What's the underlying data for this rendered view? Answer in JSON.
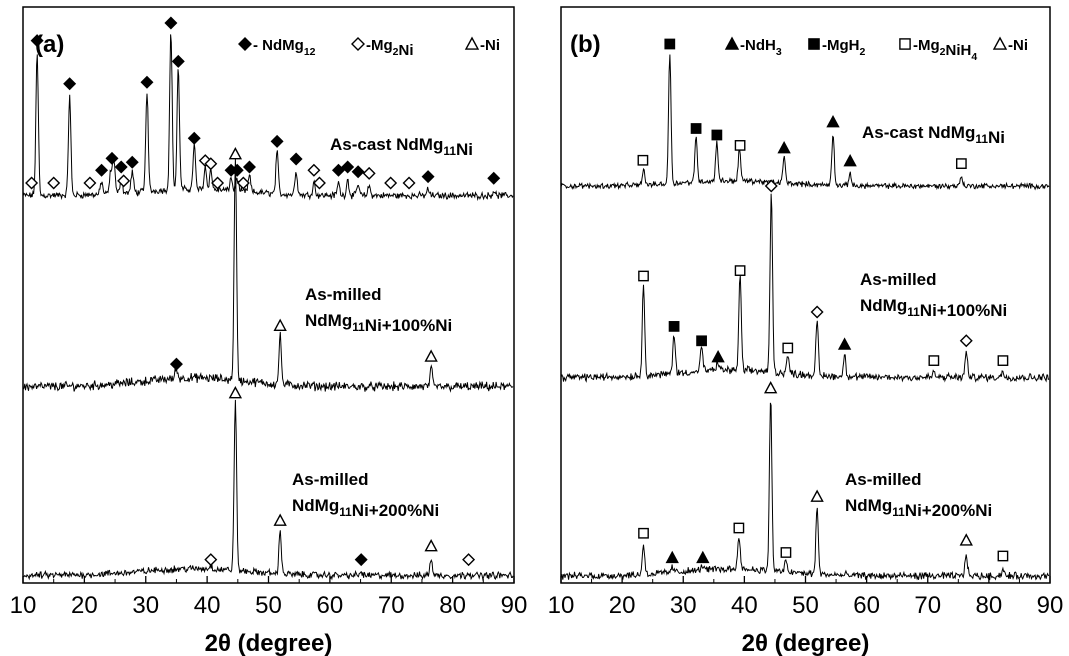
{
  "chart_data": [
    {
      "type": "line",
      "panel_label": "(a)",
      "xlabel": "2θ (degree)",
      "xlim": [
        10,
        90
      ],
      "xticks": [
        10,
        20,
        30,
        40,
        50,
        60,
        70,
        80,
        90
      ],
      "legend": [
        {
          "marker": "filled-diamond",
          "text": "- NdMg12",
          "rich": [
            "- NdMg",
            {
              "sub": "12"
            }
          ]
        },
        {
          "marker": "open-diamond",
          "text": "-Mg2Ni",
          "rich": [
            "-Mg",
            {
              "sub": "2"
            },
            "Ni"
          ]
        },
        {
          "marker": "open-triangle",
          "text": "-Ni",
          "rich": [
            "-Ni"
          ]
        }
      ],
      "series": [
        {
          "label": "As-cast NdMg11Ni",
          "label_lines": [
            [
              "As-cast NdMg",
              {
                "sub": "11"
              },
              "Ni"
            ]
          ],
          "baseline": 0.03,
          "peaks": [
            [
              12.3,
              0.89
            ],
            [
              17.6,
              0.62
            ],
            [
              22.8,
              0.08
            ],
            [
              24.3,
              0.14
            ],
            [
              24.8,
              0.22
            ],
            [
              26.0,
              0.1
            ],
            [
              27.8,
              0.13
            ],
            [
              30.2,
              0.63
            ],
            [
              34.1,
              1.0
            ],
            [
              35.3,
              0.76
            ],
            [
              37.9,
              0.28
            ],
            [
              39.7,
              0.14
            ],
            [
              40.6,
              0.12
            ],
            [
              43.9,
              0.08
            ],
            [
              44.9,
              0.08
            ],
            [
              46.9,
              0.1
            ],
            [
              51.4,
              0.26
            ],
            [
              54.5,
              0.15
            ],
            [
              57.4,
              0.08
            ],
            [
              61.4,
              0.08
            ],
            [
              62.9,
              0.1
            ],
            [
              64.6,
              0.07
            ],
            [
              66.4,
              0.06
            ],
            [
              76.0,
              0.04
            ],
            [
              86.7,
              0.03
            ]
          ]
        },
        {
          "label": "As-milled NdMg11Ni+100%Ni",
          "label_lines": [
            [
              "As-milled"
            ],
            [
              "NdMg",
              {
                "sub": "11"
              },
              "Ni+100%Ni"
            ]
          ],
          "baseline": 0.02,
          "peaks": [
            [
              35.0,
              0.045
            ],
            [
              44.6,
              1.0
            ],
            [
              51.9,
              0.22
            ],
            [
              76.5,
              0.08
            ]
          ]
        },
        {
          "label": "As-milled NdMg11Ni+200%Ni",
          "label_lines": [
            [
              "As-milled"
            ],
            [
              "NdMg",
              {
                "sub": "11"
              },
              "Ni+200%Ni"
            ]
          ],
          "baseline": 0.03,
          "peaks": [
            [
              40.6,
              0.02
            ],
            [
              44.6,
              1.0
            ],
            [
              51.9,
              0.25
            ],
            [
              65.1,
              0.02
            ],
            [
              76.5,
              0.1
            ],
            [
              82.6,
              0.02
            ]
          ]
        }
      ],
      "markers": [
        {
          "series": 0,
          "symbol": "filled-diamond",
          "x": [
            12.3,
            17.6,
            22.8,
            24.5,
            26.0,
            27.8,
            30.2,
            34.1,
            35.3,
            37.9,
            43.9,
            44.9,
            46.9,
            51.4,
            54.5,
            61.4,
            62.9,
            64.6,
            76.0,
            86.7
          ]
        },
        {
          "series": 0,
          "symbol": "open-diamond",
          "x": [
            11.4,
            15.0,
            20.9,
            26.4,
            39.7,
            40.6,
            41.7,
            45.9,
            57.4,
            58.3,
            66.4,
            69.9,
            72.9
          ]
        },
        {
          "series": 1,
          "symbol": "filled-diamond",
          "x": [
            35.0
          ]
        },
        {
          "series": 1,
          "symbol": "open-triangle",
          "x": [
            44.6,
            51.9,
            76.5
          ]
        },
        {
          "series": 2,
          "symbol": "open-diamond",
          "x": [
            40.6,
            82.6
          ]
        },
        {
          "series": 2,
          "symbol": "filled-diamond",
          "x": [
            65.1
          ]
        },
        {
          "series": 2,
          "symbol": "open-triangle",
          "x": [
            44.6,
            51.9,
            76.5
          ]
        }
      ]
    },
    {
      "type": "line",
      "panel_label": "(b)",
      "xlabel": "2θ (degree)",
      "xlim": [
        10,
        90
      ],
      "xticks": [
        10,
        20,
        30,
        40,
        50,
        60,
        70,
        80,
        90
      ],
      "legend": [
        {
          "marker": "filled-triangle",
          "text": "-NdH3",
          "rich": [
            "-NdH",
            {
              "sub": "3"
            }
          ]
        },
        {
          "marker": "filled-square",
          "text": "-MgH2",
          "rich": [
            "-MgH",
            {
              "sub": "2"
            }
          ]
        },
        {
          "marker": "open-square",
          "text": "-Mg2NiH4",
          "rich": [
            "-Mg",
            {
              "sub": "2"
            },
            "NiH",
            {
              "sub": "4"
            }
          ]
        },
        {
          "marker": "open-triangle",
          "text": "-Ni",
          "rich": [
            "-Ni"
          ]
        }
      ],
      "series": [
        {
          "label": "As-cast NdMg11Ni",
          "label_lines": [
            [
              "As-cast NdMg",
              {
                "sub": "11"
              },
              "Ni"
            ]
          ],
          "baseline": 0.05,
          "peaks": [
            [
              23.5,
              0.12
            ],
            [
              27.8,
              1.0
            ],
            [
              32.1,
              0.35
            ],
            [
              35.5,
              0.3
            ],
            [
              39.2,
              0.25
            ],
            [
              46.5,
              0.2
            ],
            [
              54.5,
              0.4
            ],
            [
              57.3,
              0.1
            ],
            [
              75.5,
              0.08
            ]
          ]
        },
        {
          "label": "As-milled NdMg11Ni+100%Ni",
          "label_lines": [
            [
              "As-milled"
            ],
            [
              "NdMg",
              {
                "sub": "11"
              },
              "Ni+100%Ni"
            ]
          ],
          "baseline": 0.05,
          "peaks": [
            [
              23.5,
              0.5
            ],
            [
              28.5,
              0.22
            ],
            [
              33.0,
              0.14
            ],
            [
              35.7,
              0.05
            ],
            [
              39.3,
              0.53
            ],
            [
              44.4,
              1.0
            ],
            [
              47.1,
              0.1
            ],
            [
              51.9,
              0.3
            ],
            [
              56.4,
              0.12
            ],
            [
              71.0,
              0.03
            ],
            [
              76.3,
              0.14
            ],
            [
              82.3,
              0.03
            ]
          ]
        },
        {
          "label": "As-milled NdMg11Ni+200%Ni",
          "label_lines": [
            [
              "As-milled"
            ],
            [
              "NdMg",
              {
                "sub": "11"
              },
              "Ni+200%Ni"
            ]
          ],
          "baseline": 0.02,
          "peaks": [
            [
              23.5,
              0.17
            ],
            [
              28.2,
              0.03
            ],
            [
              33.2,
              0.03
            ],
            [
              39.1,
              0.2
            ],
            [
              44.3,
              1.0
            ],
            [
              46.8,
              0.06
            ],
            [
              51.9,
              0.38
            ],
            [
              76.3,
              0.13
            ],
            [
              82.3,
              0.04
            ]
          ]
        }
      ],
      "markers": [
        {
          "series": 0,
          "symbol": "open-square",
          "x": [
            23.4,
            39.3,
            75.5
          ]
        },
        {
          "series": 0,
          "symbol": "filled-square",
          "x": [
            27.8,
            32.1,
            35.5
          ]
        },
        {
          "series": 0,
          "symbol": "filled-triangle",
          "x": [
            46.5,
            54.5,
            57.3
          ]
        },
        {
          "series": 1,
          "symbol": "open-square",
          "x": [
            23.5,
            39.3,
            47.1,
            71.0,
            82.3
          ]
        },
        {
          "series": 1,
          "symbol": "filled-square",
          "x": [
            28.5,
            33.0
          ]
        },
        {
          "series": 1,
          "symbol": "filled-triangle",
          "x": [
            35.7,
            56.4
          ]
        },
        {
          "series": 1,
          "symbol": "open-diamond",
          "x": [
            44.4,
            51.9,
            76.3
          ]
        },
        {
          "series": 2,
          "symbol": "open-square",
          "x": [
            23.5,
            39.1,
            46.8,
            82.3
          ]
        },
        {
          "series": 2,
          "symbol": "filled-triangle",
          "x": [
            28.2,
            33.2
          ]
        },
        {
          "series": 2,
          "symbol": "open-triangle",
          "x": [
            44.3,
            51.9,
            76.3
          ]
        }
      ]
    }
  ]
}
